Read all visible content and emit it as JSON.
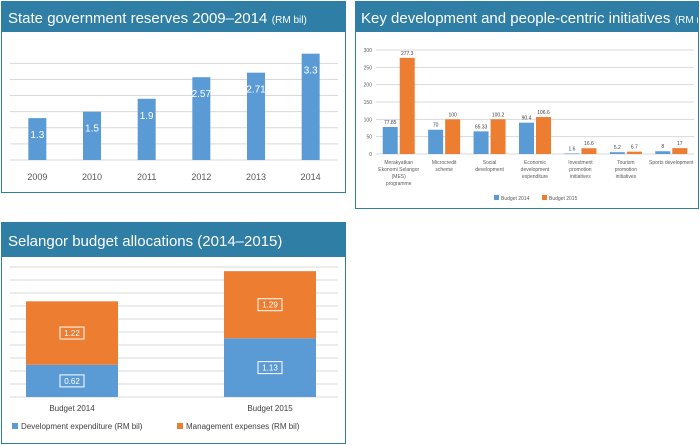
{
  "panels": {
    "reserves": {
      "title": "State government reserves 2009–2014",
      "unit": "(RM bil)"
    },
    "initiatives": {
      "title": "Key development and people-centric initiatives",
      "unit": "(RM mil)"
    },
    "budget": {
      "title": "Selangor budget allocations (2014–2015)",
      "unit": ""
    }
  },
  "colors": {
    "blue": "#5b9bd5",
    "orange": "#ed7d31",
    "header": "#2e7ea6",
    "grid": "#d9d9d9",
    "axis_text": "#595959"
  },
  "chart_data": [
    {
      "type": "bar",
      "title": "State government reserves 2009–2014 (RM bil)",
      "categories": [
        "2009",
        "2010",
        "2011",
        "2012",
        "2013",
        "2014"
      ],
      "values": [
        1.3,
        1.5,
        1.9,
        2.57,
        2.71,
        3.3
      ],
      "value_labels": [
        "1.3",
        "1.5",
        "1.9",
        "2.57",
        "2.71",
        "3.3"
      ],
      "ylim": [
        0,
        3.6
      ],
      "grid": true,
      "color": "#5b9bd5"
    },
    {
      "type": "bar",
      "title": "Key development and people-centric initiatives (RM mil)",
      "categories": [
        [
          "Merakyatkan",
          "Ekonomi Selangor",
          "(MES)",
          "programme"
        ],
        [
          "Microcredit",
          "scheme"
        ],
        [
          "Social",
          "development"
        ],
        [
          "Economic",
          "development",
          "expenditure"
        ],
        [
          "Investment",
          "promotion",
          "initiatives"
        ],
        [
          "Tourism",
          "promotion",
          "initiatives"
        ],
        [
          "Sports development"
        ]
      ],
      "series": [
        {
          "name": "Budget 2014",
          "values": [
            77.85,
            70,
            65.33,
            90.4,
            1.6,
            5.2,
            8
          ],
          "labels": [
            "77.85",
            "70",
            "65.33",
            "90.4",
            "1.6",
            "5.2",
            "8"
          ],
          "color": "#5b9bd5"
        },
        {
          "name": "Budget 2015",
          "values": [
            277.3,
            100,
            100.2,
            106.6,
            16.6,
            6.7,
            17
          ],
          "labels": [
            "277.3",
            "100",
            "100.2",
            "106.6",
            "16.6",
            "6.7",
            "17"
          ],
          "color": "#ed7d31"
        }
      ],
      "yticks": [
        "0",
        "50",
        "100",
        "150",
        "200",
        "250",
        "300"
      ],
      "ylim": [
        0,
        300
      ],
      "grid": true,
      "legend_position": "bottom"
    },
    {
      "type": "bar",
      "stacked": true,
      "title": "Selangor budget allocations (2014–2015)",
      "categories": [
        "Budget 2014",
        "Budget 2015"
      ],
      "series": [
        {
          "name": "Development expenditure (RM bil)",
          "values": [
            0.62,
            1.13
          ],
          "labels": [
            "0.62",
            "1.13"
          ],
          "color": "#5b9bd5"
        },
        {
          "name": "Management expenses    (RM bil)",
          "values": [
            1.22,
            1.29
          ],
          "labels": [
            "1.22",
            "1.29"
          ],
          "color": "#ed7d31"
        }
      ],
      "ylim": [
        0,
        2.5
      ],
      "grid": true,
      "legend_position": "bottom-left"
    }
  ]
}
